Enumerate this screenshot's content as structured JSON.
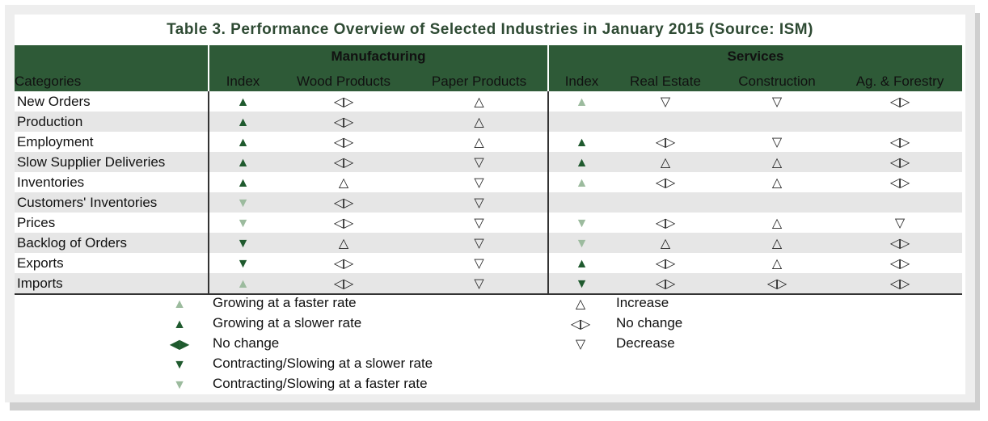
{
  "title": "Table 3. Performance Overview of Selected Industries in January 2015 (Source: ISM)",
  "groups": {
    "manufacturing": "Manufacturing",
    "services": "Services"
  },
  "columns": [
    "Categories",
    "Index",
    "Wood Products",
    "Paper Products",
    "Index",
    "Real Estate",
    "Construction",
    "Ag. & Forestry"
  ],
  "rows": [
    {
      "label": "New Orders",
      "cells": [
        "solid-up-dark",
        "open-nochange",
        "open-up",
        "solid-up-light",
        "open-down",
        "open-down",
        "open-nochange"
      ]
    },
    {
      "label": "Production",
      "cells": [
        "solid-up-dark",
        "open-nochange",
        "open-up",
        "",
        "",
        "",
        ""
      ]
    },
    {
      "label": "Employment",
      "cells": [
        "solid-up-dark",
        "open-nochange",
        "open-up",
        "solid-up-dark",
        "open-nochange",
        "open-down",
        "open-nochange"
      ]
    },
    {
      "label": "Slow Supplier Deliveries",
      "cells": [
        "solid-up-dark",
        "open-nochange",
        "open-down",
        "solid-up-dark",
        "open-up",
        "open-up",
        "open-nochange"
      ]
    },
    {
      "label": "Inventories",
      "cells": [
        "solid-up-dark",
        "open-up",
        "open-down",
        "solid-up-light",
        "open-nochange",
        "open-up",
        "open-nochange"
      ]
    },
    {
      "label": "Customers' Inventories",
      "cells": [
        "solid-down-light",
        "open-nochange",
        "open-down",
        "",
        "",
        "",
        ""
      ]
    },
    {
      "label": "Prices",
      "cells": [
        "solid-down-light",
        "open-nochange",
        "open-down",
        "solid-down-light",
        "open-nochange",
        "open-up",
        "open-down"
      ]
    },
    {
      "label": "Backlog of Orders",
      "cells": [
        "solid-down-dark",
        "open-up",
        "open-down",
        "solid-down-light",
        "open-up",
        "open-up",
        "open-nochange"
      ]
    },
    {
      "label": "Exports",
      "cells": [
        "solid-down-dark",
        "open-nochange",
        "open-down",
        "solid-up-dark",
        "open-nochange",
        "open-up",
        "open-nochange"
      ]
    },
    {
      "label": "Imports",
      "cells": [
        "solid-up-light",
        "open-nochange",
        "open-down",
        "solid-down-dark",
        "open-nochange",
        "open-nochange",
        "open-nochange"
      ]
    }
  ],
  "legend_left": [
    {
      "symbol": "solid-up-light",
      "text": "Growing at a faster rate"
    },
    {
      "symbol": "solid-up-dark",
      "text": "Growing at a slower rate"
    },
    {
      "symbol": "solid-nochange-dark",
      "text": "No change"
    },
    {
      "symbol": "solid-down-dark",
      "text": "Contracting/Slowing at a slower rate"
    },
    {
      "symbol": "solid-down-light",
      "text": "Contracting/Slowing at a faster rate"
    }
  ],
  "legend_right": [
    {
      "symbol": "open-up",
      "text": "Increase"
    },
    {
      "symbol": "open-nochange",
      "text": "No change"
    },
    {
      "symbol": "open-down",
      "text": "Decrease"
    }
  ],
  "colors": {
    "header_bg": "#2e5a37",
    "title_text": "#2e4a33",
    "dark_green": "#1f5a2e",
    "light_green": "#9cbb9e",
    "row_alt": "#e6e6e6"
  }
}
